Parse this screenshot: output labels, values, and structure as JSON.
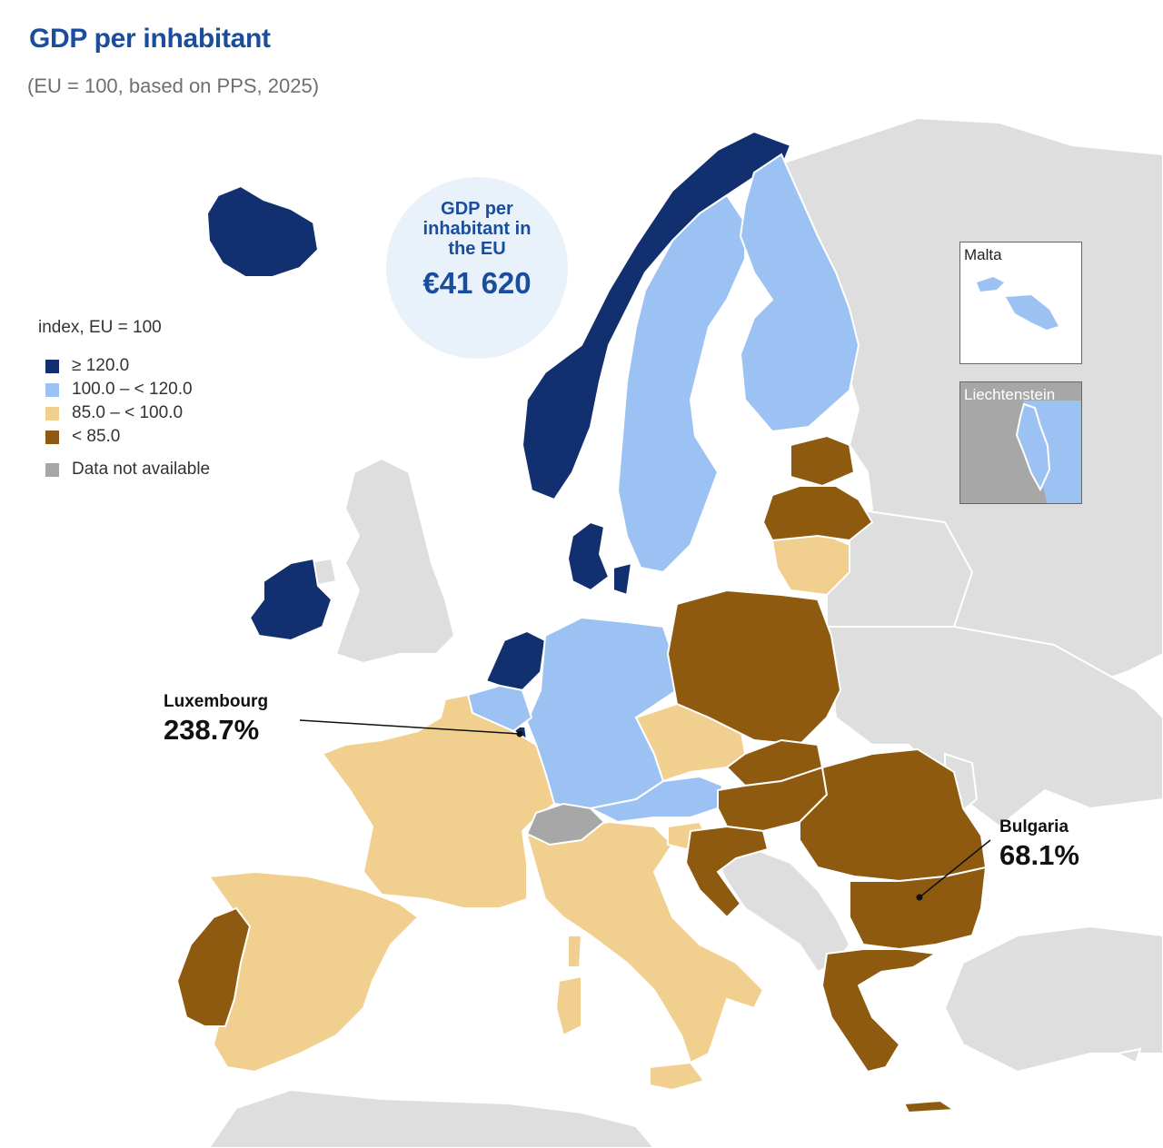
{
  "title": "GDP per inhabitant",
  "subtitle": "(EU = 100, based on PPS, 2025)",
  "bubble": {
    "label": "GDP per inhabitant in the EU",
    "amount": "€41 620"
  },
  "legend": {
    "title": "index, EU = 100",
    "items": [
      {
        "label": "≥ 120.0",
        "color": "#12306f"
      },
      {
        "label": "100.0 – < 120.0",
        "color": "#9cc2f3"
      },
      {
        "label": "85.0 – < 100.0",
        "color": "#f1cf8f"
      },
      {
        "label": "< 85.0",
        "color": "#8d5a10"
      },
      {
        "label": "Data not available",
        "color": "#a7a7a7"
      }
    ]
  },
  "callouts": {
    "luxembourg": {
      "name": "Luxembourg",
      "value": "238.7%"
    },
    "bulgaria": {
      "name": "Bulgaria",
      "value": "68.1%"
    }
  },
  "insets": {
    "malta": "Malta",
    "liechtenstein": "Liechtenstein"
  },
  "colors": {
    "high": "#12306f",
    "above": "#9cc2f3",
    "below": "#f1cf8f",
    "low": "#8d5a10",
    "na": "#a7a7a7",
    "other": "#dedede",
    "sea": "#ffffff",
    "border": "#ffffff"
  },
  "chart_data": {
    "type": "choropleth",
    "title": "GDP per inhabitant",
    "subtitle": "(EU = 100, based on PPS, 2025)",
    "legend_title": "index, EU = 100",
    "classes": [
      "≥ 120.0",
      "100.0 – < 120.0",
      "85.0 – < 100.0",
      "< 85.0",
      "Data not available"
    ],
    "regions": [
      {
        "name": "Iceland",
        "class": "≥ 120.0"
      },
      {
        "name": "Norway",
        "class": "≥ 120.0"
      },
      {
        "name": "Ireland",
        "class": "≥ 120.0"
      },
      {
        "name": "Denmark",
        "class": "≥ 120.0"
      },
      {
        "name": "Netherlands",
        "class": "≥ 120.0"
      },
      {
        "name": "Luxembourg",
        "class": "≥ 120.0",
        "value": 238.7
      },
      {
        "name": "Sweden",
        "class": "100.0 – < 120.0"
      },
      {
        "name": "Finland",
        "class": "100.0 – < 120.0"
      },
      {
        "name": "Germany",
        "class": "100.0 – < 120.0"
      },
      {
        "name": "Belgium",
        "class": "100.0 – < 120.0"
      },
      {
        "name": "Austria",
        "class": "100.0 – < 120.0"
      },
      {
        "name": "Malta",
        "class": "100.0 – < 120.0"
      },
      {
        "name": "Liechtenstein",
        "class": "100.0 – < 120.0"
      },
      {
        "name": "France",
        "class": "85.0 – < 100.0"
      },
      {
        "name": "Spain",
        "class": "85.0 – < 100.0"
      },
      {
        "name": "Italy",
        "class": "85.0 – < 100.0"
      },
      {
        "name": "Czechia",
        "class": "85.0 – < 100.0"
      },
      {
        "name": "Lithuania",
        "class": "85.0 – < 100.0"
      },
      {
        "name": "Slovenia",
        "class": "85.0 – < 100.0"
      },
      {
        "name": "Portugal",
        "class": "< 85.0"
      },
      {
        "name": "Poland",
        "class": "< 85.0"
      },
      {
        "name": "Estonia",
        "class": "< 85.0"
      },
      {
        "name": "Latvia",
        "class": "< 85.0"
      },
      {
        "name": "Slovakia",
        "class": "< 85.0"
      },
      {
        "name": "Hungary",
        "class": "< 85.0"
      },
      {
        "name": "Croatia",
        "class": "< 85.0"
      },
      {
        "name": "Romania",
        "class": "< 85.0"
      },
      {
        "name": "Bulgaria",
        "class": "< 85.0",
        "value": 68.1
      },
      {
        "name": "Greece",
        "class": "< 85.0"
      },
      {
        "name": "Switzerland",
        "class": "Data not available"
      }
    ]
  }
}
